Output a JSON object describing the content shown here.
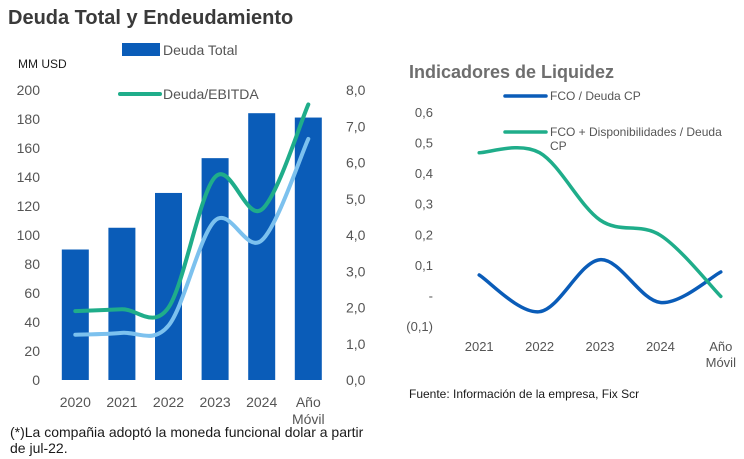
{
  "title_left": "Deuda Total y Endeudamiento",
  "title_right": "Indicadores de Liquidez",
  "unit_label": "MM USD",
  "footnote": "(*)La compañia adoptó la moneda funcional dolar a partir de jul-22.",
  "source": "Fuente: Información de la empresa, Fix Scr",
  "chart_data": [
    {
      "type": "bar",
      "title": "Deuda Total y Endeudamiento",
      "categories": [
        "2020",
        "2021",
        "2022",
        "2023",
        "2024",
        "Año Móvil"
      ],
      "ylabel": "MM USD",
      "ylim": [
        0,
        200
      ],
      "yticks": [
        "0",
        "20",
        "40",
        "60",
        "80",
        "100",
        "120",
        "140",
        "160",
        "180",
        "200"
      ],
      "y2lim": [
        0,
        8
      ],
      "y2ticks": [
        "0,0",
        "1,0",
        "2,0",
        "3,0",
        "4,0",
        "5,0",
        "6,0",
        "7,0",
        "8,0"
      ],
      "grid": false,
      "series": [
        {
          "name": "Deuda Total",
          "type": "bar",
          "axis": "left",
          "color": "#0a5cb8",
          "values": [
            90,
            105,
            129,
            153,
            184,
            181
          ]
        },
        {
          "name": "Deuda/EBITDA",
          "type": "line",
          "axis": "right",
          "color": "#1fad8a",
          "values": [
            1.9,
            1.95,
            2.0,
            5.6,
            4.7,
            7.6
          ]
        },
        {
          "type": "line",
          "axis": "right",
          "color": "#7cc1ee",
          "values": [
            1.25,
            1.3,
            1.5,
            4.4,
            3.85,
            6.65
          ]
        }
      ]
    },
    {
      "type": "line",
      "title": "Indicadores de Liquidez",
      "categories": [
        "2021",
        "2022",
        "2023",
        "2024",
        "Año Móvil"
      ],
      "ylim": [
        -0.1,
        0.6
      ],
      "yticks": [
        "(0,1)",
        "-",
        "0,1",
        "0,2",
        "0,3",
        "0,4",
        "0,5",
        "0,6"
      ],
      "grid": false,
      "series": [
        {
          "name": "FCO / Deuda CP",
          "color": "#0a5cb8",
          "values": [
            0.07,
            -0.05,
            0.12,
            -0.02,
            0.08
          ]
        },
        {
          "name": "FCO + Disponibilidades / Deuda CP",
          "color": "#1fad8a",
          "values": [
            0.47,
            0.47,
            0.25,
            0.2,
            0.0
          ]
        }
      ]
    }
  ]
}
